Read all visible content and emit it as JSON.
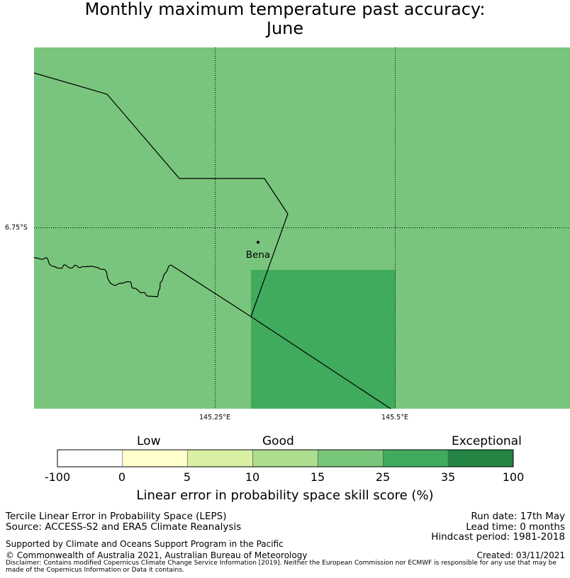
{
  "title_line1": "Monthly maximum temperature past accuracy:",
  "title_line2": "June",
  "map": {
    "lat_label": "6.75°S",
    "lon_labels": [
      "145.25°E",
      "145.5°E"
    ],
    "place_name": "Bena",
    "colors": {
      "base_cell": "#79c57d",
      "highlight_cell": "#40ab5d"
    }
  },
  "colorbar": {
    "categories": [
      "Low",
      "Good",
      "Exceptional"
    ],
    "ticks": [
      "-100",
      "0",
      "5",
      "10",
      "15",
      "25",
      "35",
      "100"
    ],
    "colors": [
      "#ffffff",
      "#ffffcc",
      "#d9f0a3",
      "#addd8e",
      "#78c679",
      "#41ab5d",
      "#238443"
    ],
    "label": "Linear error in probability space skill score (%)"
  },
  "footer": {
    "left_line1": "Tercile Linear Error in Probability Space (LEPS)",
    "left_line2": "Source: ACCESS-S2 and ERA5 Climate Reanalysis",
    "support": "Supported by Climate and Oceans Support Program in the Pacific",
    "copyright": "© Commonwealth of Australia 2021, Australian Bureau of Meteorology",
    "run_date": "Run date: 17th May",
    "lead_time": "Lead time: 0 months",
    "hindcast": "Hindcast period: 1981-2018",
    "created": "Created: 03/11/2021",
    "disclaimer": "Disclaimer: Contains modified Copernicus Climate Change Service Information [2019]. Neither the European Commission nor ECMWF is responsible for any use that may be made of the Copernicus Information or Data it contains."
  }
}
